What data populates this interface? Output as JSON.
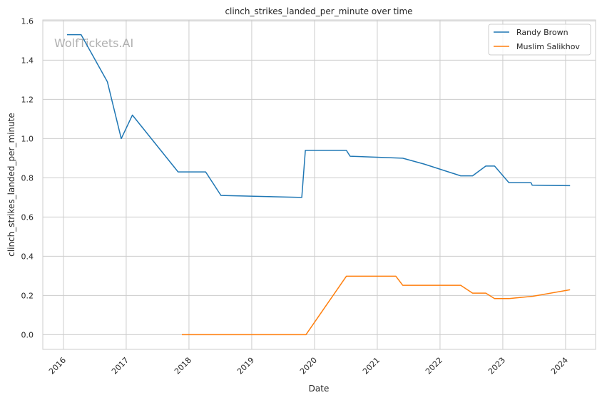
{
  "chart_data": {
    "type": "line",
    "title": "clinch_strikes_landed_per_minute over time",
    "xlabel": "Date",
    "ylabel": "clinch_strikes_landed_per_minute",
    "watermark": "WolfTickets.AI",
    "xlim": [
      "2015-09-03",
      "2024-06-24"
    ],
    "ylim": [
      -0.075,
      1.605
    ],
    "xticks": [
      "2016",
      "2017",
      "2018",
      "2019",
      "2020",
      "2021",
      "2022",
      "2023",
      "2024"
    ],
    "yticks": [
      "0.0",
      "0.2",
      "0.4",
      "0.6",
      "0.8",
      "1.0",
      "1.2",
      "1.4",
      "1.6"
    ],
    "grid": true,
    "legend_position": "top-right",
    "series": [
      {
        "name": "Randy Brown",
        "color": "#1f77b4",
        "x": [
          "2016-01-22",
          "2016-04-13",
          "2016-09-13",
          "2016-12-03",
          "2017-02-06",
          "2017-10-30",
          "2018-04-08",
          "2018-07-06",
          "2019-10-19",
          "2019-11-09",
          "2020-07-05",
          "2020-07-27",
          "2021-05-29",
          "2021-10-01",
          "2022-05-01",
          "2022-07-09",
          "2022-09-24",
          "2022-11-14",
          "2023-02-06",
          "2023-06-14",
          "2023-06-21",
          "2024-01-27"
        ],
        "y": [
          1.53,
          1.53,
          1.29,
          1.0,
          1.12,
          0.83,
          0.83,
          0.71,
          0.7,
          0.94,
          0.94,
          0.91,
          0.9,
          0.87,
          0.81,
          0.81,
          0.86,
          0.86,
          0.775,
          0.775,
          0.762,
          0.76
        ]
      },
      {
        "name": "Muslim Salikhov",
        "color": "#ff7f0e",
        "x": [
          "2017-11-21",
          "2019-11-12",
          "2020-07-05",
          "2021-04-19",
          "2021-05-29",
          "2022-05-01",
          "2022-07-09",
          "2022-09-24",
          "2022-11-14",
          "2023-02-06",
          "2023-06-25",
          "2024-01-27"
        ],
        "y": [
          0.0,
          0.0,
          0.298,
          0.298,
          0.252,
          0.252,
          0.212,
          0.212,
          0.184,
          0.184,
          0.196,
          0.229
        ]
      }
    ]
  }
}
